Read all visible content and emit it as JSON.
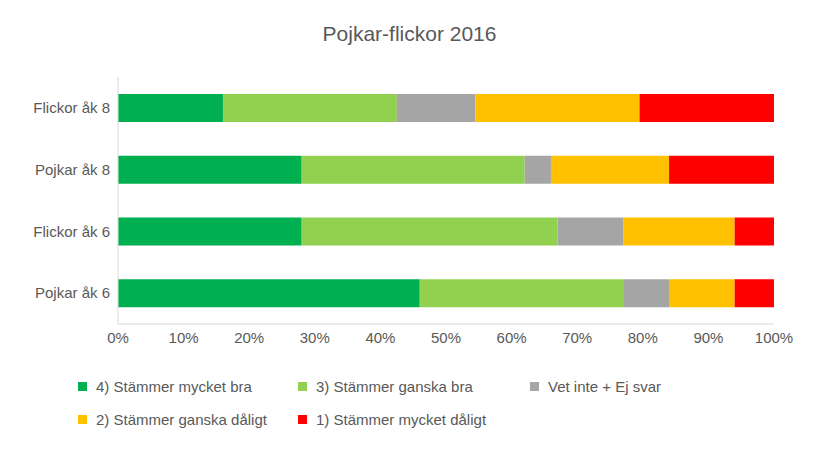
{
  "chart_data": {
    "type": "bar",
    "title": "Pojkar-flickor 2016",
    "orientation": "horizontal",
    "stacked": true,
    "categories": [
      "Flickor åk 8",
      "Pojkar åk 8",
      "Flickor åk 6",
      "Pojkar åk 6"
    ],
    "series": [
      {
        "name": "4) Stämmer mycket bra",
        "color": "#00b050",
        "values": [
          16,
          28,
          28,
          46
        ]
      },
      {
        "name": "3) Stämmer ganska bra",
        "color": "#92d050",
        "values": [
          26.5,
          34,
          39,
          31
        ]
      },
      {
        "name": "Vet inte + Ej svar",
        "color": "#a5a5a5",
        "values": [
          12,
          4,
          10,
          7
        ]
      },
      {
        "name": "2) Stämmer ganska dåligt",
        "color": "#ffc000",
        "values": [
          25,
          18,
          17,
          10
        ]
      },
      {
        "name": "1) Stämmer mycket dåligt",
        "color": "#ff0000",
        "values": [
          20.5,
          16,
          6,
          6
        ]
      }
    ],
    "xlim": [
      0,
      100
    ],
    "xticks": [
      {
        "value": 0,
        "label": "0%"
      },
      {
        "value": 10,
        "label": "10%"
      },
      {
        "value": 20,
        "label": "20%"
      },
      {
        "value": 30,
        "label": "30%"
      },
      {
        "value": 40,
        "label": "40%"
      },
      {
        "value": 50,
        "label": "50%"
      },
      {
        "value": 60,
        "label": "60%"
      },
      {
        "value": 70,
        "label": "70%"
      },
      {
        "value": 80,
        "label": "80%"
      },
      {
        "value": 90,
        "label": "90%"
      },
      {
        "value": 100,
        "label": "100%"
      }
    ],
    "grid": false,
    "legend": "bottom"
  }
}
